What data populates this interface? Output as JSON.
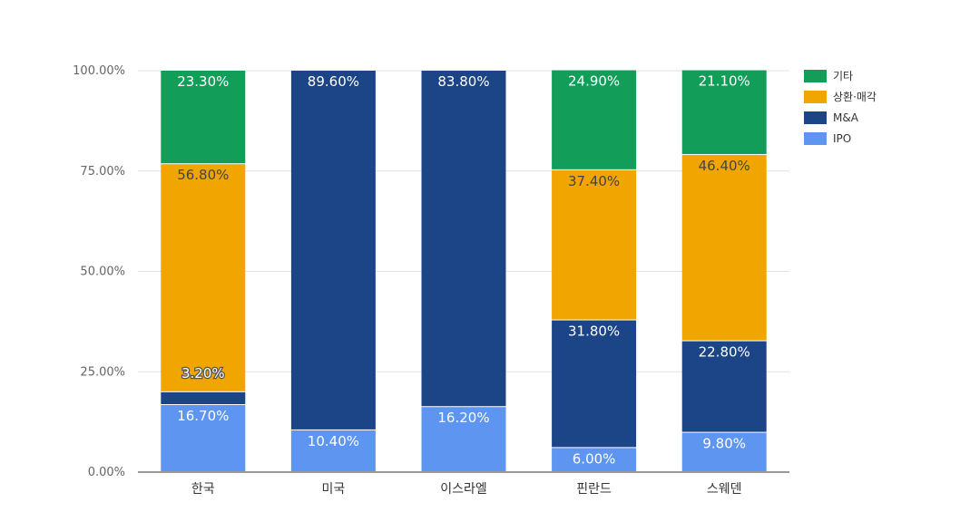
{
  "chart_data": {
    "type": "bar",
    "stacked": true,
    "categories": [
      "한국",
      "미국",
      "이스라엘",
      "핀란드",
      "스웨덴"
    ],
    "series": [
      {
        "name": "IPO",
        "color": "#5d95f0",
        "values": [
          16.7,
          10.4,
          16.2,
          6.0,
          9.8
        ],
        "labels": [
          "16.70%",
          "10.40%",
          "16.20%",
          "6.00%",
          "9.80%"
        ]
      },
      {
        "name": "M&A",
        "color": "#1c4587",
        "values": [
          3.2,
          89.6,
          83.8,
          31.8,
          22.8
        ],
        "labels": [
          "3.20%",
          "89.60%",
          "83.80%",
          "31.80%",
          "22.80%"
        ]
      },
      {
        "name": "상환·매각",
        "color": "#f0a500",
        "values": [
          56.8,
          0,
          0,
          37.4,
          46.4
        ],
        "labels": [
          "56.80%",
          "",
          "",
          "37.40%",
          "46.40%"
        ]
      },
      {
        "name": "기타",
        "color": "#129e58",
        "values": [
          23.3,
          0,
          0,
          24.9,
          21.1
        ],
        "labels": [
          "23.30%",
          "",
          "",
          "24.90%",
          "21.10%"
        ]
      }
    ],
    "legend_order": [
      "기타",
      "상환·매각",
      "M&A",
      "IPO"
    ],
    "y_ticks": [
      "0.00%",
      "25.00%",
      "50.00%",
      "75.00%",
      "100.00%"
    ],
    "ylim": [
      0,
      100
    ],
    "grid": true,
    "legend_position": "right-top",
    "title": "",
    "xlabel": "",
    "ylabel": ""
  }
}
